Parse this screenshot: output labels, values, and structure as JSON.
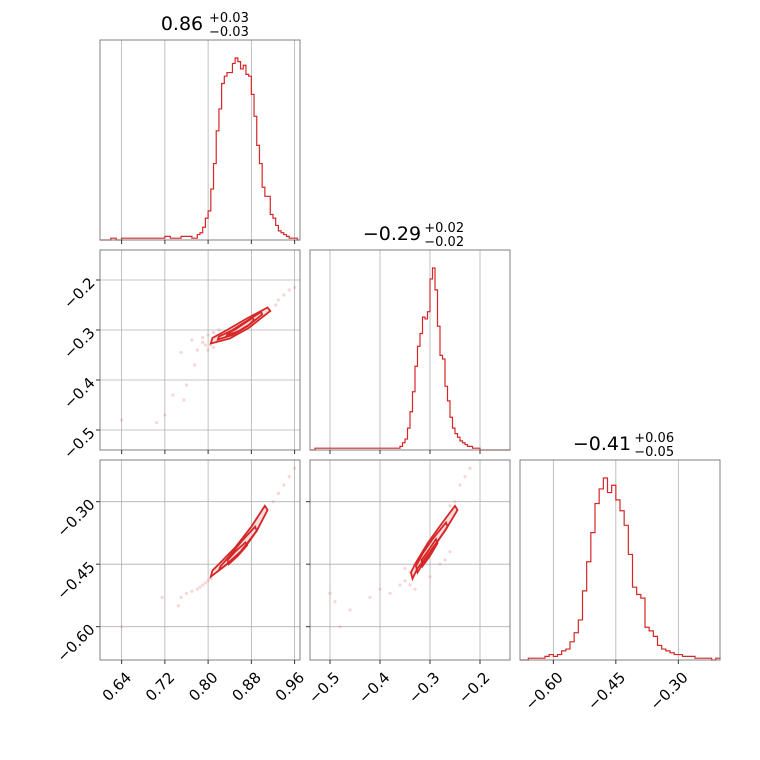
{
  "chart_data": {
    "type": "corner",
    "colors": {
      "line": "#d62728",
      "samples": "#e98a8a",
      "grid": "#b0b0b0",
      "frame": "#808080"
    },
    "grid": true,
    "parameters": [
      {
        "range": [
          0.6,
          0.97
        ],
        "ticks": [
          0.64,
          0.72,
          0.8,
          0.88,
          0.96
        ],
        "tick_labels": [
          "0.64",
          "0.72",
          "0.80",
          "0.88",
          "0.96"
        ],
        "title": {
          "median": "0.86",
          "upper": "+0.03",
          "lower": "−0.03"
        }
      },
      {
        "range": [
          -0.54,
          -0.14
        ],
        "ticks": [
          -0.5,
          -0.4,
          -0.3,
          -0.2
        ],
        "tick_labels": [
          "−0.5",
          "−0.4",
          "−0.3",
          "−0.2"
        ],
        "title": {
          "median": "−0.29",
          "upper": "+0.02",
          "lower": "−0.02"
        }
      },
      {
        "range": [
          -0.68,
          -0.2
        ],
        "ticks": [
          -0.6,
          -0.45,
          -0.3
        ],
        "tick_labels": [
          "−0.60",
          "−0.45",
          "−0.30"
        ],
        "title": {
          "median": "−0.41",
          "upper": "+0.06",
          "lower": "−0.05"
        }
      }
    ],
    "histograms": [
      {
        "param": 0,
        "edges": [
          0.6,
          0.61,
          0.62,
          0.63,
          0.64,
          0.65,
          0.66,
          0.67,
          0.68,
          0.69,
          0.7,
          0.71,
          0.72,
          0.73,
          0.74,
          0.75,
          0.76,
          0.77,
          0.78,
          0.785,
          0.79,
          0.795,
          0.8,
          0.805,
          0.81,
          0.815,
          0.82,
          0.825,
          0.83,
          0.835,
          0.84,
          0.845,
          0.85,
          0.855,
          0.86,
          0.865,
          0.87,
          0.875,
          0.88,
          0.885,
          0.89,
          0.895,
          0.9,
          0.905,
          0.91,
          0.915,
          0.92,
          0.925,
          0.93,
          0.935,
          0.94,
          0.945,
          0.95,
          0.955,
          0.96,
          0.965,
          0.97
        ],
        "counts": [
          0,
          0,
          1,
          0,
          1,
          1,
          1,
          1,
          1,
          1,
          1,
          1,
          2,
          1,
          1,
          2,
          2,
          1,
          3,
          4,
          7,
          12,
          16,
          28,
          42,
          60,
          72,
          86,
          90,
          92,
          92,
          97,
          100,
          98,
          94,
          96,
          91,
          90,
          80,
          68,
          52,
          42,
          29,
          24,
          24,
          14,
          12,
          8,
          5,
          4,
          3,
          2,
          1,
          1,
          1,
          0
        ]
      },
      {
        "param": 1,
        "edges": [
          -0.54,
          -0.53,
          -0.52,
          -0.51,
          -0.5,
          -0.49,
          -0.48,
          -0.47,
          -0.46,
          -0.45,
          -0.44,
          -0.43,
          -0.42,
          -0.41,
          -0.4,
          -0.39,
          -0.38,
          -0.37,
          -0.36,
          -0.355,
          -0.35,
          -0.345,
          -0.34,
          -0.335,
          -0.33,
          -0.325,
          -0.32,
          -0.315,
          -0.31,
          -0.305,
          -0.3,
          -0.295,
          -0.29,
          -0.285,
          -0.28,
          -0.275,
          -0.27,
          -0.265,
          -0.26,
          -0.255,
          -0.25,
          -0.245,
          -0.24,
          -0.235,
          -0.23,
          -0.225,
          -0.22,
          -0.215,
          -0.21,
          -0.2,
          -0.19,
          -0.18,
          -0.17,
          -0.16,
          -0.15,
          -0.14
        ],
        "counts": [
          0,
          1,
          1,
          1,
          1,
          1,
          1,
          1,
          1,
          1,
          1,
          1,
          1,
          1,
          1,
          1,
          1,
          1,
          2,
          4,
          6,
          12,
          21,
          32,
          46,
          57,
          64,
          73,
          72,
          76,
          94,
          100,
          88,
          68,
          52,
          50,
          35,
          27,
          18,
          12,
          9,
          7,
          5,
          4,
          3,
          2,
          2,
          1,
          1,
          0,
          0,
          0,
          0,
          0,
          0
        ]
      },
      {
        "param": 2,
        "edges": [
          -0.68,
          -0.67,
          -0.66,
          -0.65,
          -0.64,
          -0.63,
          -0.62,
          -0.61,
          -0.6,
          -0.59,
          -0.58,
          -0.57,
          -0.56,
          -0.55,
          -0.54,
          -0.53,
          -0.52,
          -0.51,
          -0.5,
          -0.49,
          -0.48,
          -0.47,
          -0.46,
          -0.45,
          -0.44,
          -0.43,
          -0.42,
          -0.41,
          -0.4,
          -0.39,
          -0.38,
          -0.37,
          -0.36,
          -0.35,
          -0.34,
          -0.33,
          -0.32,
          -0.31,
          -0.3,
          -0.29,
          -0.28,
          -0.27,
          -0.26,
          -0.25,
          -0.24,
          -0.23,
          -0.22,
          -0.21,
          -0.2
        ],
        "counts": [
          0,
          0,
          1,
          1,
          1,
          1,
          2,
          3,
          2,
          3,
          5,
          6,
          10,
          15,
          22,
          38,
          54,
          70,
          86,
          94,
          100,
          92,
          96,
          88,
          82,
          74,
          58,
          40,
          36,
          34,
          18,
          16,
          13,
          8,
          6,
          5,
          4,
          3,
          3,
          2,
          2,
          2,
          1,
          1,
          1,
          1,
          0,
          1
        ]
      }
    ],
    "scatter_panels": [
      {
        "x_param": 0,
        "y_param": 1,
        "contours": [
          [
            [
              0.805,
              -0.327
            ],
            [
              0.84,
              -0.317
            ],
            [
              0.875,
              -0.296
            ],
            [
              0.915,
              -0.262
            ],
            [
              0.91,
              -0.255
            ],
            [
              0.87,
              -0.278
            ],
            [
              0.835,
              -0.3
            ],
            [
              0.808,
              -0.316
            ]
          ],
          [
            [
              0.818,
              -0.319
            ],
            [
              0.845,
              -0.31
            ],
            [
              0.872,
              -0.293
            ],
            [
              0.9,
              -0.269
            ],
            [
              0.898,
              -0.264
            ],
            [
              0.87,
              -0.283
            ],
            [
              0.842,
              -0.302
            ],
            [
              0.82,
              -0.313
            ]
          ],
          [
            [
              0.835,
              -0.31
            ],
            [
              0.855,
              -0.303
            ],
            [
              0.875,
              -0.29
            ],
            [
              0.885,
              -0.28
            ],
            [
              0.882,
              -0.276
            ],
            [
              0.868,
              -0.286
            ],
            [
              0.85,
              -0.299
            ],
            [
              0.837,
              -0.306
            ]
          ]
        ],
        "samples": [
          [
            0.64,
            -0.48
          ],
          [
            0.72,
            -0.47
          ],
          [
            0.705,
            -0.485
          ],
          [
            0.76,
            -0.41
          ],
          [
            0.775,
            -0.37
          ],
          [
            0.78,
            -0.34
          ],
          [
            0.79,
            -0.325
          ],
          [
            0.795,
            -0.33
          ],
          [
            0.8,
            -0.34
          ],
          [
            0.805,
            -0.33
          ],
          [
            0.81,
            -0.335
          ],
          [
            0.93,
            -0.24
          ],
          [
            0.94,
            -0.23
          ],
          [
            0.95,
            -0.22
          ],
          [
            0.96,
            -0.215
          ],
          [
            0.755,
            -0.44
          ],
          [
            0.735,
            -0.43
          ],
          [
            0.8,
            -0.31
          ],
          [
            0.81,
            -0.305
          ],
          [
            0.925,
            -0.25
          ],
          [
            0.885,
            -0.27
          ],
          [
            0.82,
            -0.3
          ],
          [
            0.79,
            -0.315
          ],
          [
            0.77,
            -0.32
          ],
          [
            0.75,
            -0.345
          ]
        ]
      },
      {
        "x_param": 0,
        "y_param": 2,
        "contours": [
          [
            [
              0.805,
              -0.48
            ],
            [
              0.83,
              -0.455
            ],
            [
              0.86,
              -0.42
            ],
            [
              0.89,
              -0.37
            ],
            [
              0.91,
              -0.32
            ],
            [
              0.905,
              -0.31
            ],
            [
              0.88,
              -0.36
            ],
            [
              0.85,
              -0.41
            ],
            [
              0.82,
              -0.45
            ],
            [
              0.808,
              -0.465
            ]
          ],
          [
            [
              0.82,
              -0.465
            ],
            [
              0.845,
              -0.44
            ],
            [
              0.868,
              -0.41
            ],
            [
              0.89,
              -0.37
            ],
            [
              0.887,
              -0.36
            ],
            [
              0.862,
              -0.395
            ],
            [
              0.84,
              -0.43
            ],
            [
              0.823,
              -0.455
            ]
          ],
          [
            [
              0.838,
              -0.45
            ],
            [
              0.855,
              -0.43
            ],
            [
              0.872,
              -0.405
            ],
            [
              0.869,
              -0.398
            ],
            [
              0.85,
              -0.42
            ],
            [
              0.836,
              -0.44
            ]
          ]
        ],
        "samples": [
          [
            0.64,
            -0.6
          ],
          [
            0.715,
            -0.53
          ],
          [
            0.745,
            -0.55
          ],
          [
            0.76,
            -0.52
          ],
          [
            0.78,
            -0.51
          ],
          [
            0.79,
            -0.5
          ],
          [
            0.795,
            -0.495
          ],
          [
            0.8,
            -0.49
          ],
          [
            0.93,
            -0.28
          ],
          [
            0.94,
            -0.26
          ],
          [
            0.95,
            -0.24
          ],
          [
            0.96,
            -0.22
          ],
          [
            0.92,
            -0.3
          ],
          [
            0.785,
            -0.505
          ],
          [
            0.77,
            -0.515
          ],
          [
            0.75,
            -0.53
          ],
          [
            0.805,
            -0.485
          ]
        ]
      },
      {
        "x_param": 1,
        "y_param": 2,
        "contours": [
          [
            [
              -0.335,
              -0.485
            ],
            [
              -0.325,
              -0.46
            ],
            [
              -0.3,
              -0.42
            ],
            [
              -0.27,
              -0.37
            ],
            [
              -0.245,
              -0.32
            ],
            [
              -0.25,
              -0.31
            ],
            [
              -0.275,
              -0.35
            ],
            [
              -0.305,
              -0.4
            ],
            [
              -0.33,
              -0.45
            ],
            [
              -0.338,
              -0.47
            ]
          ],
          [
            [
              -0.325,
              -0.47
            ],
            [
              -0.31,
              -0.44
            ],
            [
              -0.29,
              -0.405
            ],
            [
              -0.265,
              -0.36
            ],
            [
              -0.268,
              -0.35
            ],
            [
              -0.295,
              -0.39
            ],
            [
              -0.315,
              -0.425
            ],
            [
              -0.328,
              -0.455
            ]
          ],
          [
            [
              -0.315,
              -0.455
            ],
            [
              -0.3,
              -0.43
            ],
            [
              -0.285,
              -0.4
            ],
            [
              -0.288,
              -0.39
            ],
            [
              -0.302,
              -0.415
            ],
            [
              -0.317,
              -0.44
            ]
          ]
        ],
        "samples": [
          [
            -0.5,
            -0.52
          ],
          [
            -0.49,
            -0.54
          ],
          [
            -0.46,
            -0.56
          ],
          [
            -0.42,
            -0.53
          ],
          [
            -0.4,
            -0.51
          ],
          [
            -0.38,
            -0.52
          ],
          [
            -0.36,
            -0.5
          ],
          [
            -0.35,
            -0.49
          ],
          [
            -0.34,
            -0.5
          ],
          [
            -0.33,
            -0.51
          ],
          [
            -0.48,
            -0.6
          ],
          [
            -0.22,
            -0.22
          ],
          [
            -0.23,
            -0.24
          ],
          [
            -0.24,
            -0.26
          ],
          [
            -0.25,
            -0.3
          ],
          [
            -0.26,
            -0.31
          ],
          [
            -0.34,
            -0.47
          ],
          [
            -0.35,
            -0.46
          ],
          [
            -0.3,
            -0.48
          ],
          [
            -0.28,
            -0.45
          ],
          [
            -0.26,
            -0.42
          ],
          [
            -0.27,
            -0.44
          ]
        ]
      }
    ]
  }
}
